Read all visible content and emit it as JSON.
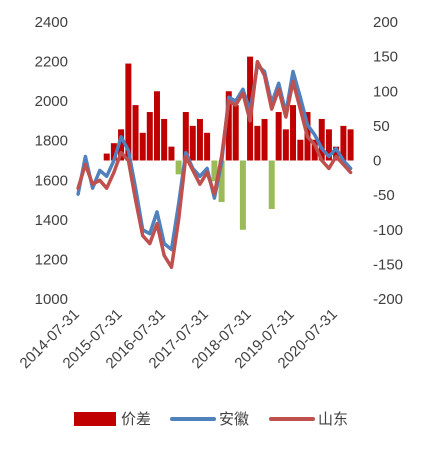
{
  "chart_data": {
    "type": "line",
    "title": "",
    "xlabel": "",
    "ylabel": "",
    "y_left_lim": [
      1000,
      2400
    ],
    "y_left_ticks": [
      1000,
      1200,
      1400,
      1600,
      1800,
      2000,
      2200,
      2400
    ],
    "y_right_lim": [
      -200,
      200
    ],
    "y_right_ticks": [
      -200,
      -150,
      -100,
      -50,
      0,
      50,
      100,
      150,
      200
    ],
    "x_tick_labels": [
      "2014-07-31",
      "2015-07-31",
      "2016-07-31",
      "2017-07-31",
      "2018-07-31",
      "2019-07-31",
      "2020-07-31"
    ],
    "grid": false,
    "legend_position": "bottom",
    "colors": {
      "spread": "#c00000",
      "spread_negative": "#9bbb59",
      "anhui": "#4f81bd",
      "shandong": "#c0504d"
    },
    "series": [
      {
        "name": "价差",
        "axis": "right",
        "type": "bar",
        "x": [
          "2014-07",
          "2014-09",
          "2014-11",
          "2015-01",
          "2015-03",
          "2015-05",
          "2015-07",
          "2015-09",
          "2015-11",
          "2016-01",
          "2016-03",
          "2016-05",
          "2016-07",
          "2016-09",
          "2016-11",
          "2017-01",
          "2017-03",
          "2017-05",
          "2017-07",
          "2017-09",
          "2017-11",
          "2018-01",
          "2018-03",
          "2018-05",
          "2018-07",
          "2018-09",
          "2018-11",
          "2019-01",
          "2019-03",
          "2019-05",
          "2019-07",
          "2019-09",
          "2019-11",
          "2020-01",
          "2020-03",
          "2020-05",
          "2020-07",
          "2020-09",
          "2020-11"
        ],
        "values": [
          0,
          0,
          0,
          0,
          10,
          25,
          45,
          140,
          80,
          40,
          70,
          100,
          60,
          20,
          -20,
          70,
          50,
          60,
          40,
          -30,
          -60,
          100,
          80,
          -100,
          150,
          50,
          60,
          -70,
          70,
          45,
          80,
          30,
          70,
          30,
          60,
          45,
          20,
          50,
          45
        ]
      },
      {
        "name": "安徽",
        "axis": "left",
        "x": [
          "2014-07",
          "2014-09",
          "2014-11",
          "2015-01",
          "2015-03",
          "2015-05",
          "2015-07",
          "2015-09",
          "2015-11",
          "2016-01",
          "2016-03",
          "2016-05",
          "2016-07",
          "2016-09",
          "2016-11",
          "2017-01",
          "2017-03",
          "2017-05",
          "2017-07",
          "2017-09",
          "2017-11",
          "2018-01",
          "2018-03",
          "2018-05",
          "2018-07",
          "2018-09",
          "2018-11",
          "2019-01",
          "2019-03",
          "2019-05",
          "2019-07",
          "2019-09",
          "2019-11",
          "2020-01",
          "2020-03",
          "2020-05",
          "2020-07",
          "2020-09",
          "2020-11"
        ],
        "values": [
          1530,
          1720,
          1560,
          1650,
          1620,
          1700,
          1820,
          1750,
          1560,
          1350,
          1330,
          1440,
          1280,
          1250,
          1480,
          1740,
          1660,
          1620,
          1660,
          1510,
          1690,
          2020,
          2000,
          2060,
          1950,
          2180,
          2150,
          1990,
          2090,
          1940,
          2150,
          2020,
          1880,
          1830,
          1760,
          1720,
          1760,
          1700,
          1660
        ]
      },
      {
        "name": "山东",
        "axis": "left",
        "x": [
          "2014-07",
          "2014-09",
          "2014-11",
          "2015-01",
          "2015-03",
          "2015-05",
          "2015-07",
          "2015-09",
          "2015-11",
          "2016-01",
          "2016-03",
          "2016-05",
          "2016-07",
          "2016-09",
          "2016-11",
          "2017-01",
          "2017-03",
          "2017-05",
          "2017-07",
          "2017-09",
          "2017-11",
          "2018-01",
          "2018-03",
          "2018-05",
          "2018-07",
          "2018-09",
          "2018-11",
          "2019-01",
          "2019-03",
          "2019-05",
          "2019-07",
          "2019-09",
          "2019-11",
          "2020-01",
          "2020-03",
          "2020-05",
          "2020-07",
          "2020-09",
          "2020-11"
        ],
        "values": [
          1560,
          1680,
          1580,
          1600,
          1560,
          1640,
          1740,
          1700,
          1500,
          1320,
          1280,
          1380,
          1220,
          1160,
          1400,
          1720,
          1650,
          1580,
          1640,
          1530,
          1720,
          2000,
          1980,
          2040,
          1900,
          2200,
          2130,
          1960,
          2060,
          1920,
          2100,
          1960,
          1820,
          1780,
          1700,
          1660,
          1720,
          1680,
          1640
        ]
      }
    ]
  }
}
